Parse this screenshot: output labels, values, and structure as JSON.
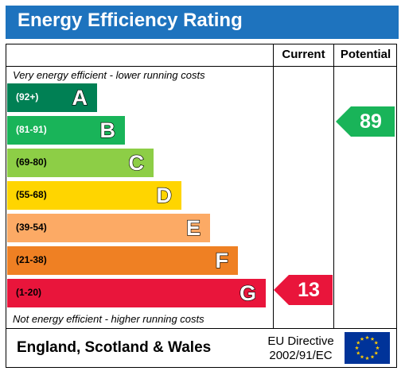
{
  "header": {
    "title": "Energy Efficiency Rating"
  },
  "columns": {
    "current": "Current",
    "potential": "Potential"
  },
  "notes": {
    "top": "Very energy efficient - lower running costs",
    "bottom": "Not energy efficient - higher running costs"
  },
  "bands": [
    {
      "range": "(92+)",
      "letter": "A",
      "color": "#008054",
      "text_color": "#ffffff"
    },
    {
      "range": "(81-91)",
      "letter": "B",
      "color": "#19b459",
      "text_color": "#ffffff"
    },
    {
      "range": "(69-80)",
      "letter": "C",
      "color": "#8dce46",
      "text_color": "#000000"
    },
    {
      "range": "(55-68)",
      "letter": "D",
      "color": "#ffd500",
      "text_color": "#000000"
    },
    {
      "range": "(39-54)",
      "letter": "E",
      "color": "#fcaa65",
      "text_color": "#000000"
    },
    {
      "range": "(21-38)",
      "letter": "F",
      "color": "#ef8023",
      "text_color": "#000000"
    },
    {
      "range": "(1-20)",
      "letter": "G",
      "color": "#e9153b",
      "text_color": "#000000"
    }
  ],
  "ratings": {
    "current": {
      "value": "13",
      "band": "G",
      "color": "#e9153b"
    },
    "potential": {
      "value": "89",
      "band": "B",
      "color": "#19b459"
    }
  },
  "footer": {
    "region": "England, Scotland & Wales",
    "directive_line1": "EU Directive",
    "directive_line2": "2002/91/EC",
    "flag": "eu-flag-icon"
  }
}
